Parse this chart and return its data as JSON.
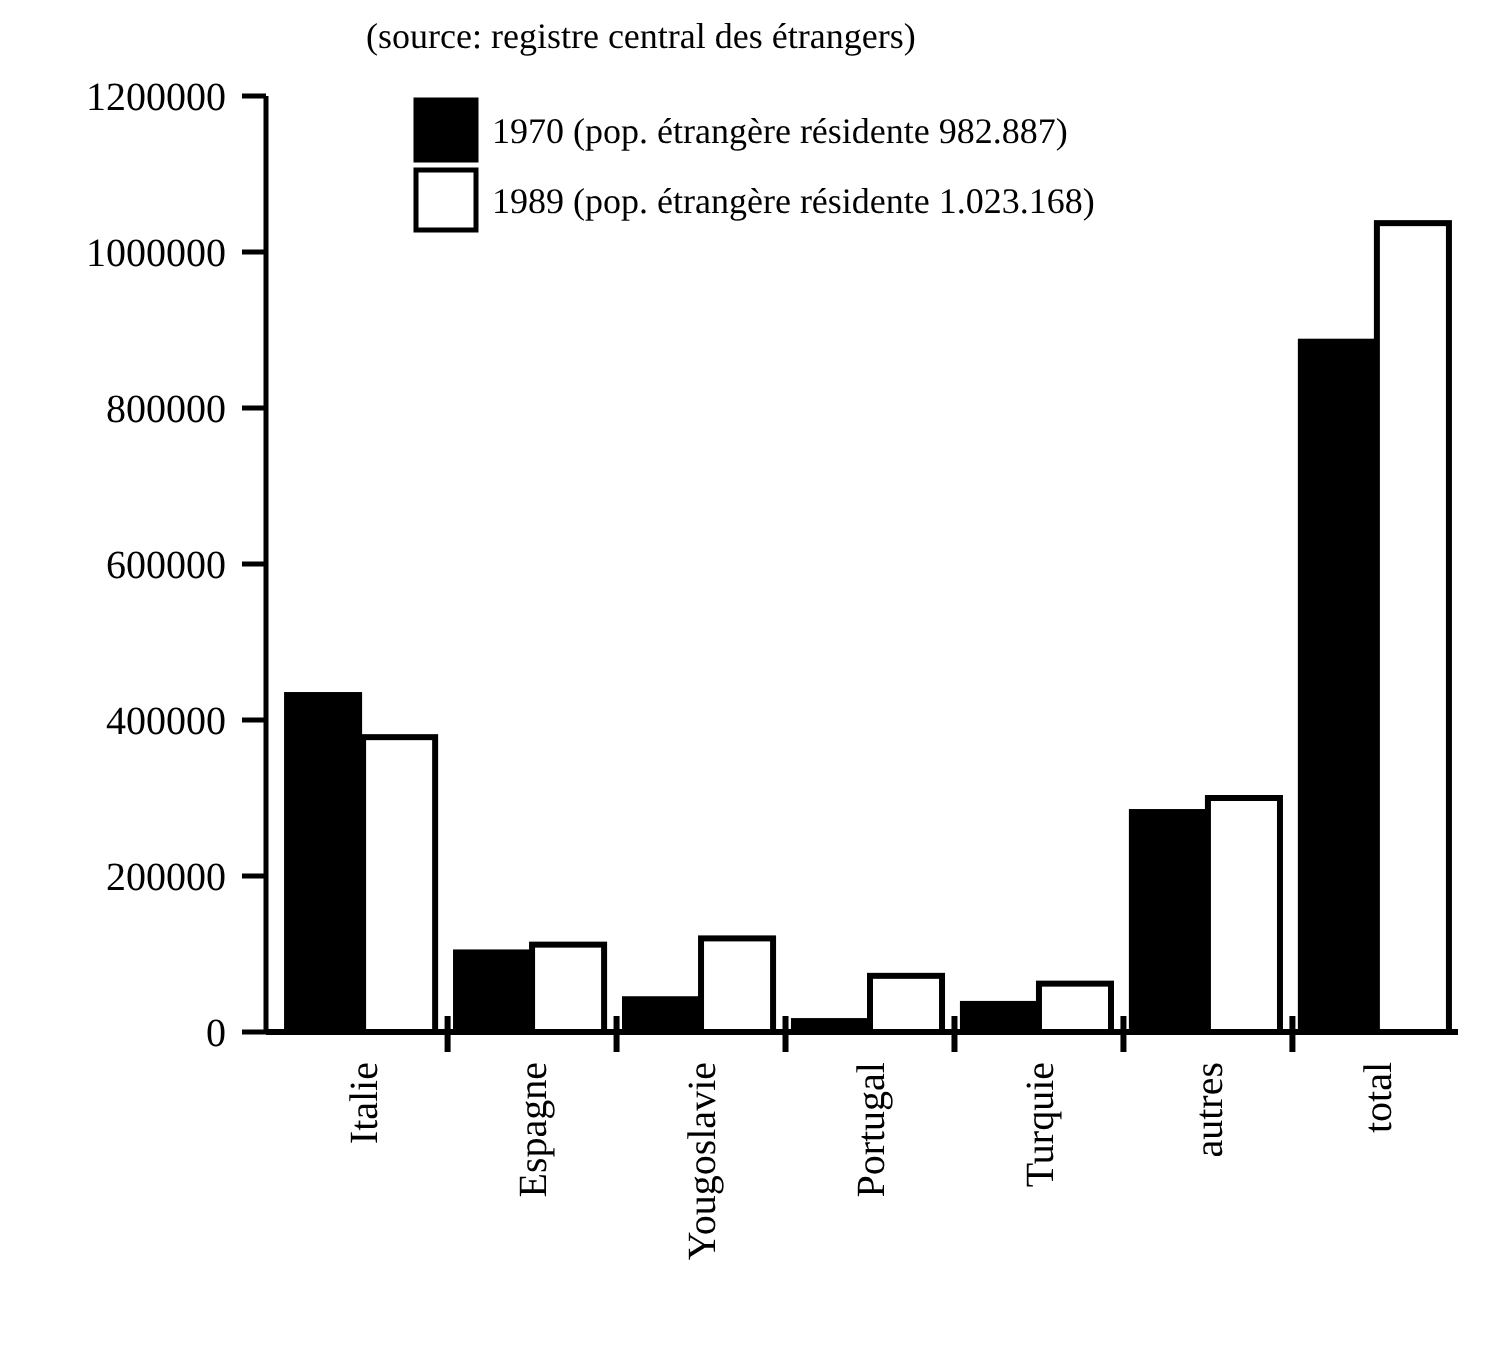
{
  "chart_data": {
    "type": "bar",
    "annotations": [
      "(source: registre central des étrangers)"
    ],
    "categories": [
      "Italie",
      "Espagne",
      "Yougoslavie",
      "Portugal",
      "Turquie",
      "autres",
      "total"
    ],
    "series": [
      {
        "name": "1970 (pop. étrangère résidente 982.887)",
        "color": "#000000",
        "values": [
          432000,
          102000,
          42000,
          14000,
          36000,
          282000,
          885000
        ]
      },
      {
        "name": "1989 (pop. étrangère résidente 1.023.168)",
        "color": "#ffffff",
        "values": [
          378000,
          112000,
          120000,
          72000,
          62000,
          300000,
          1037000
        ]
      }
    ],
    "ylim": [
      0,
      1200000
    ],
    "yticks": [
      0,
      200000,
      400000,
      600000,
      800000,
      1000000,
      1200000
    ],
    "legend": "top left"
  }
}
